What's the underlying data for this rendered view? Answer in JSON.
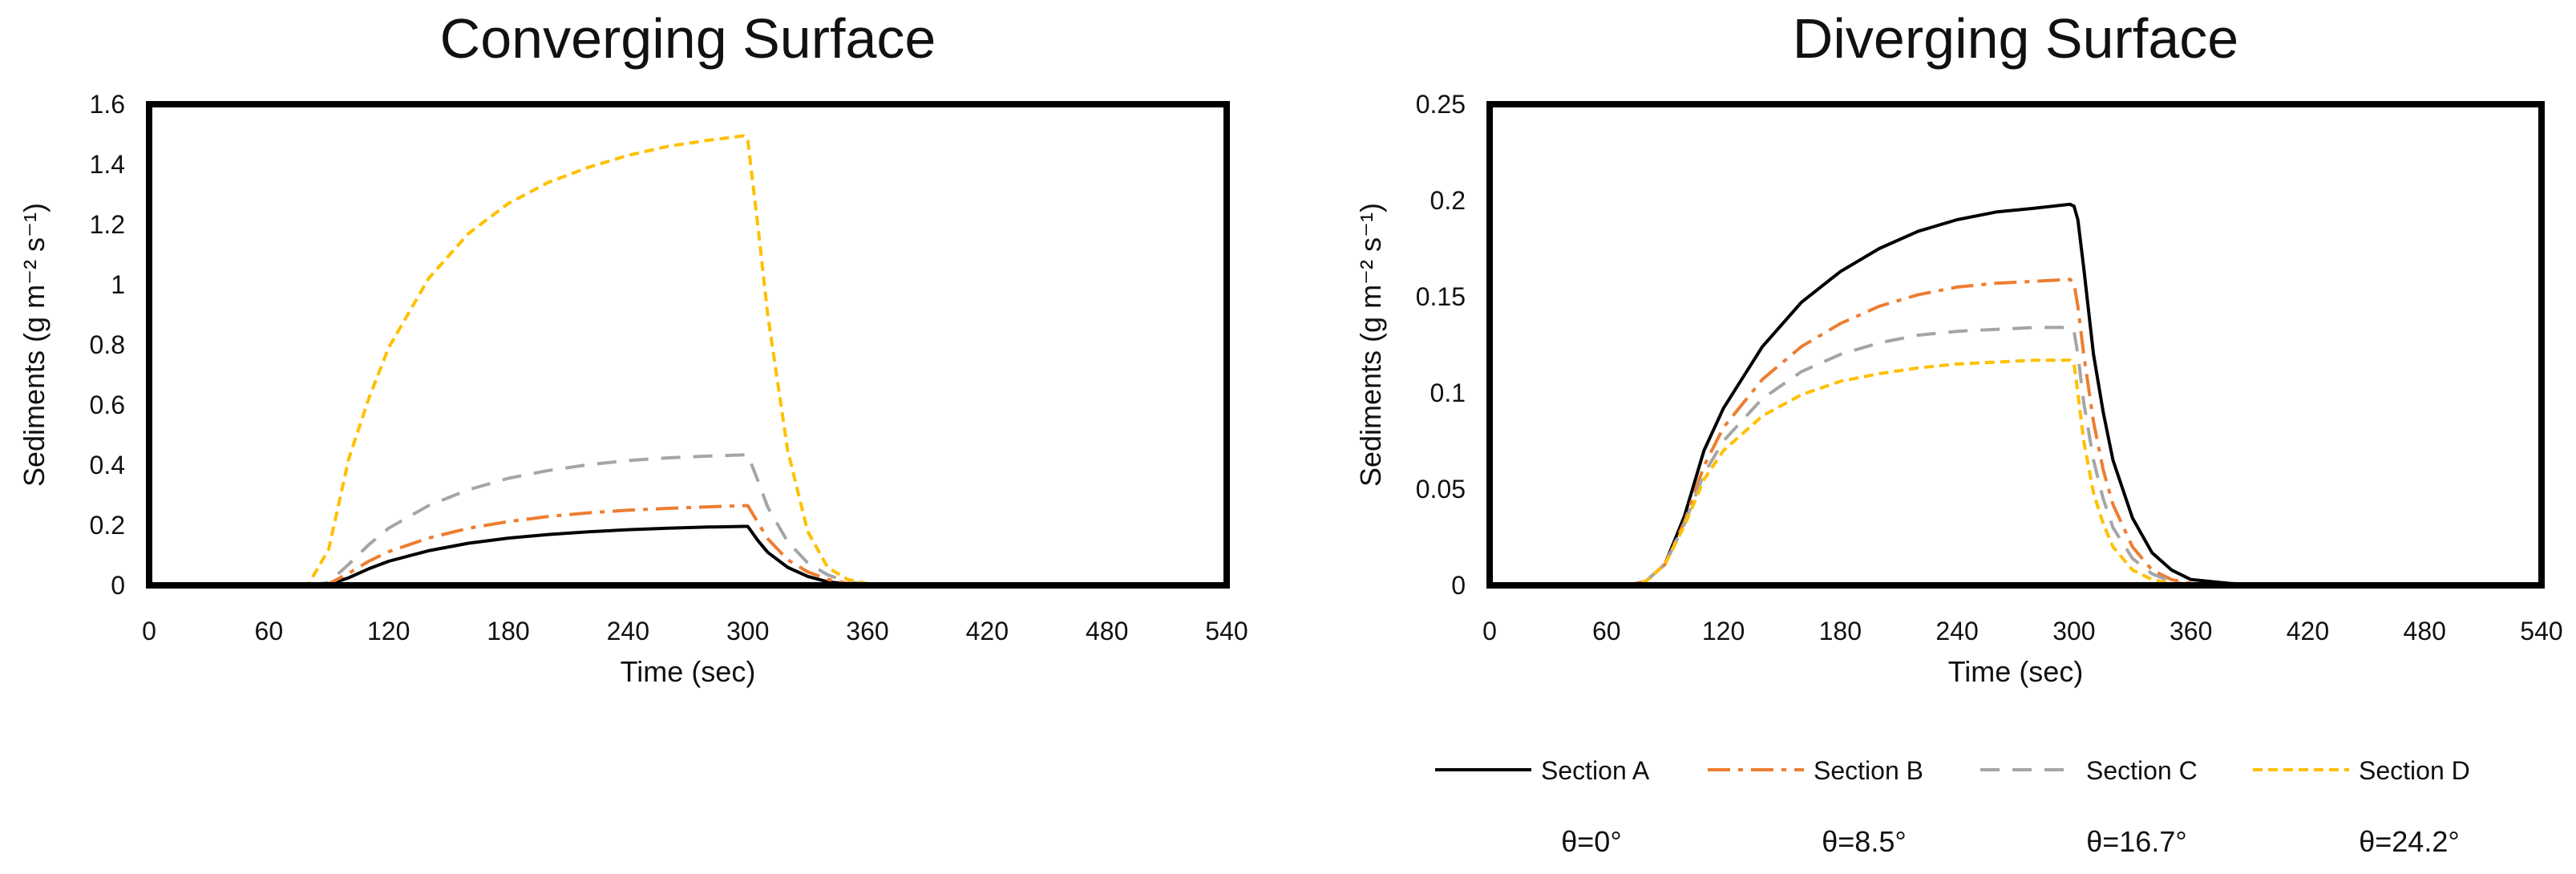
{
  "chart_data": [
    {
      "type": "line",
      "title": "Converging Surface",
      "xlabel": "Time (sec)",
      "ylabel": "Sediments (g m⁻² s⁻¹)",
      "xlim": [
        0,
        540
      ],
      "ylim": [
        0,
        1.6
      ],
      "xticks": [
        "0",
        "60",
        "120",
        "180",
        "240",
        "300",
        "360",
        "420",
        "480",
        "540"
      ],
      "yticks": [
        "0",
        "0.2",
        "0.4",
        "0.6",
        "0.8",
        "1",
        "1.2",
        "1.4",
        "1.6"
      ],
      "grid": false,
      "x": [
        0,
        30,
        60,
        80,
        90,
        100,
        110,
        120,
        140,
        160,
        180,
        200,
        220,
        240,
        260,
        280,
        298,
        300,
        305,
        310,
        320,
        330,
        340,
        350,
        360,
        380,
        400,
        420,
        480,
        540
      ],
      "series": [
        {
          "name": "Section A",
          "color": "#000000",
          "dash": "solid",
          "values": [
            0,
            0,
            0,
            0,
            0.003,
            0.025,
            0.055,
            0.08,
            0.115,
            0.14,
            0.157,
            0.169,
            0.178,
            0.185,
            0.19,
            0.194,
            0.196,
            0.196,
            0.15,
            0.11,
            0.06,
            0.03,
            0.012,
            0.004,
            0.001,
            0,
            0,
            0,
            0,
            0
          ]
        },
        {
          "name": "Section B",
          "color": "#ED7D31",
          "dash": "dashdot",
          "values": [
            0,
            0,
            0,
            0,
            0.005,
            0.04,
            0.08,
            0.112,
            0.157,
            0.19,
            0.212,
            0.229,
            0.241,
            0.25,
            0.256,
            0.261,
            0.265,
            0.265,
            0.21,
            0.155,
            0.085,
            0.045,
            0.02,
            0.007,
            0.002,
            0,
            0,
            0,
            0,
            0
          ]
        },
        {
          "name": "Section C",
          "color": "#A5A5A5",
          "dash": "dashed",
          "values": [
            0,
            0,
            0,
            0,
            0.01,
            0.07,
            0.135,
            0.19,
            0.265,
            0.318,
            0.356,
            0.382,
            0.401,
            0.415,
            0.424,
            0.43,
            0.434,
            0.434,
            0.35,
            0.26,
            0.145,
            0.075,
            0.035,
            0.012,
            0.004,
            0,
            0,
            0,
            0,
            0
          ]
        },
        {
          "name": "Section D",
          "color": "#FFC000",
          "dash": "shortdash",
          "values": [
            0,
            0,
            0,
            0.005,
            0.12,
            0.42,
            0.62,
            0.79,
            1.02,
            1.17,
            1.27,
            1.34,
            1.39,
            1.43,
            1.46,
            1.48,
            1.495,
            1.48,
            1.2,
            0.9,
            0.45,
            0.18,
            0.06,
            0.02,
            0.006,
            0.001,
            0,
            0,
            0,
            0
          ]
        }
      ]
    },
    {
      "type": "line",
      "title": "Diverging Surface",
      "xlabel": "Time (sec)",
      "ylabel": "Sediments (g m⁻² s⁻¹)",
      "xlim": [
        0,
        540
      ],
      "ylim": [
        0,
        0.25
      ],
      "xticks": [
        "0",
        "60",
        "120",
        "180",
        "240",
        "300",
        "360",
        "420",
        "480",
        "540"
      ],
      "yticks": [
        "0",
        "0.05",
        "0.1",
        "0.15",
        "0.2",
        "0.25"
      ],
      "grid": false,
      "x": [
        0,
        30,
        60,
        70,
        80,
        90,
        100,
        110,
        120,
        140,
        160,
        180,
        200,
        220,
        240,
        260,
        280,
        298,
        300,
        302,
        305,
        310,
        315,
        320,
        330,
        340,
        350,
        360,
        380,
        400,
        420,
        480,
        540
      ],
      "series": [
        {
          "name": "Section A",
          "color": "#000000",
          "dash": "solid",
          "values": [
            0,
            0,
            0,
            0,
            0.002,
            0.011,
            0.036,
            0.07,
            0.092,
            0.124,
            0.147,
            0.163,
            0.175,
            0.184,
            0.19,
            0.194,
            0.196,
            0.198,
            0.197,
            0.19,
            0.165,
            0.12,
            0.09,
            0.065,
            0.035,
            0.017,
            0.008,
            0.003,
            0.001,
            0,
            0,
            0,
            0
          ]
        },
        {
          "name": "Section B",
          "color": "#ED7D31",
          "dash": "dashdot",
          "values": [
            0,
            0,
            0,
            0,
            0.002,
            0.011,
            0.033,
            0.062,
            0.082,
            0.107,
            0.124,
            0.136,
            0.145,
            0.151,
            0.155,
            0.157,
            0.158,
            0.159,
            0.157,
            0.145,
            0.12,
            0.085,
            0.06,
            0.042,
            0.02,
            0.008,
            0.003,
            0.001,
            0,
            0,
            0,
            0,
            0
          ]
        },
        {
          "name": "Section C",
          "color": "#A5A5A5",
          "dash": "dashed",
          "values": [
            0,
            0,
            0,
            0,
            0.002,
            0.011,
            0.032,
            0.058,
            0.075,
            0.097,
            0.111,
            0.12,
            0.126,
            0.13,
            0.132,
            0.133,
            0.134,
            0.134,
            0.132,
            0.12,
            0.095,
            0.065,
            0.045,
            0.03,
            0.014,
            0.006,
            0.002,
            0,
            0,
            0,
            0,
            0,
            0
          ]
        },
        {
          "name": "Section D",
          "color": "#FFC000",
          "dash": "shortdash",
          "values": [
            0,
            0,
            0,
            0,
            0.002,
            0.011,
            0.031,
            0.055,
            0.07,
            0.088,
            0.099,
            0.106,
            0.11,
            0.113,
            0.115,
            0.116,
            0.117,
            0.117,
            0.115,
            0.1,
            0.075,
            0.048,
            0.032,
            0.02,
            0.008,
            0.003,
            0.001,
            0,
            0,
            0,
            0,
            0,
            0
          ]
        }
      ]
    }
  ],
  "legend": {
    "items": [
      {
        "label": "Section A",
        "theta": "θ=0°",
        "color": "#000000",
        "dash": "solid"
      },
      {
        "label": "Section B",
        "theta": "θ=8.5°",
        "color": "#ED7D31",
        "dash": "dashdot"
      },
      {
        "label": "Section C",
        "theta": "θ=16.7°",
        "color": "#A5A5A5",
        "dash": "dashed"
      },
      {
        "label": "Section D",
        "theta": "θ=24.2°",
        "color": "#FFC000",
        "dash": "shortdash"
      }
    ]
  }
}
